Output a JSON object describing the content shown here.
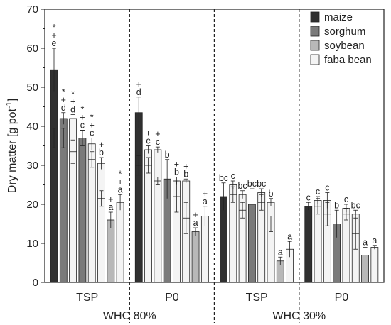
{
  "chart_data": {
    "type": "bar",
    "ylabel": "Dry matter [g pot",
    "ylabel_sup": "-1",
    "ylabel_end": "]",
    "ylim": [
      0,
      70
    ],
    "yticks": [
      "0",
      "10",
      "20",
      "30",
      "40",
      "50",
      "60",
      "70"
    ],
    "legend": {
      "placement": "top-right",
      "entries": [
        {
          "name": "maize",
          "color": "#303030"
        },
        {
          "name": "sorghum",
          "color": "#7a7a7a"
        },
        {
          "name": "soybean",
          "color": "#b8b8b8"
        },
        {
          "name": "faba bean",
          "color": "#f4f4f4"
        }
      ]
    },
    "group_labels": [
      "TSP",
      "P0",
      "TSP",
      "P0"
    ],
    "treatment_labels": [
      "WHC 80%",
      "WHC 30%"
    ],
    "groups": [
      {
        "bars": [
          {
            "crop": "maize",
            "value": 54.5,
            "err": 5.5,
            "inner": 37,
            "inner_err": 2.5,
            "annot": [
              "*",
              "+",
              "e"
            ]
          },
          {
            "crop": "sorghum",
            "value": 42,
            "err": 1.5,
            "inner": 37,
            "inner_err": 2.5,
            "annot": [
              "*",
              "+",
              "d"
            ]
          },
          {
            "crop": "faba bean",
            "value": 42,
            "err": 1,
            "inner": 33.5,
            "inner_err": 3,
            "annot": [
              "*",
              "+",
              "d"
            ]
          },
          {
            "crop": "sorghum",
            "value": 37,
            "err": 2,
            "inner": 37,
            "inner_err": 2,
            "annot": [
              "*",
              "+",
              "c"
            ]
          },
          {
            "crop": "faba bean",
            "value": 35.5,
            "err": 1.5,
            "inner": 31.5,
            "inner_err": 2,
            "annot": [
              "*",
              "+",
              "c"
            ]
          },
          {
            "crop": "faba bean",
            "value": 30.5,
            "err": 1.5,
            "inner": 21.5,
            "inner_err": 2,
            "annot": [
              "+",
              "b"
            ]
          },
          {
            "crop": "soybean",
            "value": 16,
            "err": 2,
            "annot": [
              "+",
              "a"
            ]
          },
          {
            "crop": "faba bean",
            "value": 20.5,
            "err": 2,
            "annot": [
              "*",
              "+",
              "a"
            ]
          }
        ]
      },
      {
        "bars": [
          {
            "crop": "maize",
            "value": 43.5,
            "err": 4,
            "inner": 30,
            "inner_err": 2.5,
            "annot": [
              "+",
              "d"
            ]
          },
          {
            "crop": "faba bean",
            "value": 34,
            "err": 1,
            "inner": 30,
            "inner_err": 2,
            "annot": [
              "+",
              "c"
            ]
          },
          {
            "crop": "faba bean",
            "value": 34,
            "err": 0.7,
            "inner": 26,
            "inner_err": 1,
            "annot": [
              "+",
              "c"
            ]
          },
          {
            "crop": "sorghum",
            "value": 26.5,
            "err": 5,
            "annot": [
              "b"
            ]
          },
          {
            "crop": "faba bean",
            "value": 26,
            "err": 1,
            "inner": 22,
            "inner_err": 4,
            "annot": [
              "+",
              "b"
            ]
          },
          {
            "crop": "faba bean",
            "value": 26,
            "err": 0.5,
            "inner": 16.5,
            "inner_err": 4,
            "annot": [
              "+",
              "b"
            ]
          },
          {
            "crop": "soybean",
            "value": 13,
            "err": 1,
            "annot": [
              "+",
              "a"
            ]
          },
          {
            "crop": "faba bean",
            "value": 17,
            "err": 2.5,
            "annot": [
              "+",
              "a"
            ]
          }
        ]
      },
      {
        "bars": [
          {
            "crop": "maize",
            "value": 22,
            "err": 3.5,
            "annot": [
              "bc"
            ]
          },
          {
            "crop": "faba bean",
            "value": 25,
            "err": 1,
            "inner": 22.5,
            "inner_err": 2,
            "annot": [
              "c"
            ]
          },
          {
            "crop": "faba bean",
            "value": 22.5,
            "err": 1,
            "inner": 18.5,
            "inner_err": 2,
            "annot": [
              "bc"
            ]
          },
          {
            "crop": "sorghum",
            "value": 20,
            "err": 4,
            "annot": [
              "bc"
            ]
          },
          {
            "crop": "faba bean",
            "value": 23,
            "err": 1,
            "inner": 20.5,
            "inner_err": 2,
            "annot": [
              "bc"
            ]
          },
          {
            "crop": "faba bean",
            "value": 20.5,
            "err": 1,
            "inner": 15,
            "inner_err": 2,
            "annot": [
              "b"
            ]
          },
          {
            "crop": "soybean",
            "value": 5.5,
            "err": 1,
            "annot": [
              "a"
            ]
          },
          {
            "crop": "faba bean",
            "value": 8.5,
            "err": 2,
            "annot": [
              "a"
            ]
          }
        ]
      },
      {
        "bars": [
          {
            "crop": "maize",
            "value": 19.5,
            "err": 1,
            "annot": [
              "c"
            ]
          },
          {
            "crop": "faba bean",
            "value": 21,
            "err": 1,
            "inner": 19.5,
            "inner_err": 2,
            "annot": [
              "c"
            ]
          },
          {
            "crop": "faba bean",
            "value": 21,
            "err": 2,
            "inner": 17.5,
            "inner_err": 3,
            "annot": [
              "c"
            ]
          },
          {
            "crop": "sorghum",
            "value": 15,
            "err": 3.5,
            "annot": [
              "b"
            ]
          },
          {
            "crop": "faba bean",
            "value": 19,
            "err": 1,
            "inner": 17.5,
            "inner_err": 1.5,
            "annot": [
              "c"
            ]
          },
          {
            "crop": "faba bean",
            "value": 17.5,
            "err": 1,
            "inner": 12.5,
            "inner_err": 4,
            "annot": [
              "bc"
            ]
          },
          {
            "crop": "soybean",
            "value": 7,
            "err": 2,
            "annot": [
              "a"
            ]
          },
          {
            "crop": "faba bean",
            "value": 9,
            "err": 0.5,
            "annot": [
              "a"
            ]
          }
        ]
      }
    ]
  }
}
